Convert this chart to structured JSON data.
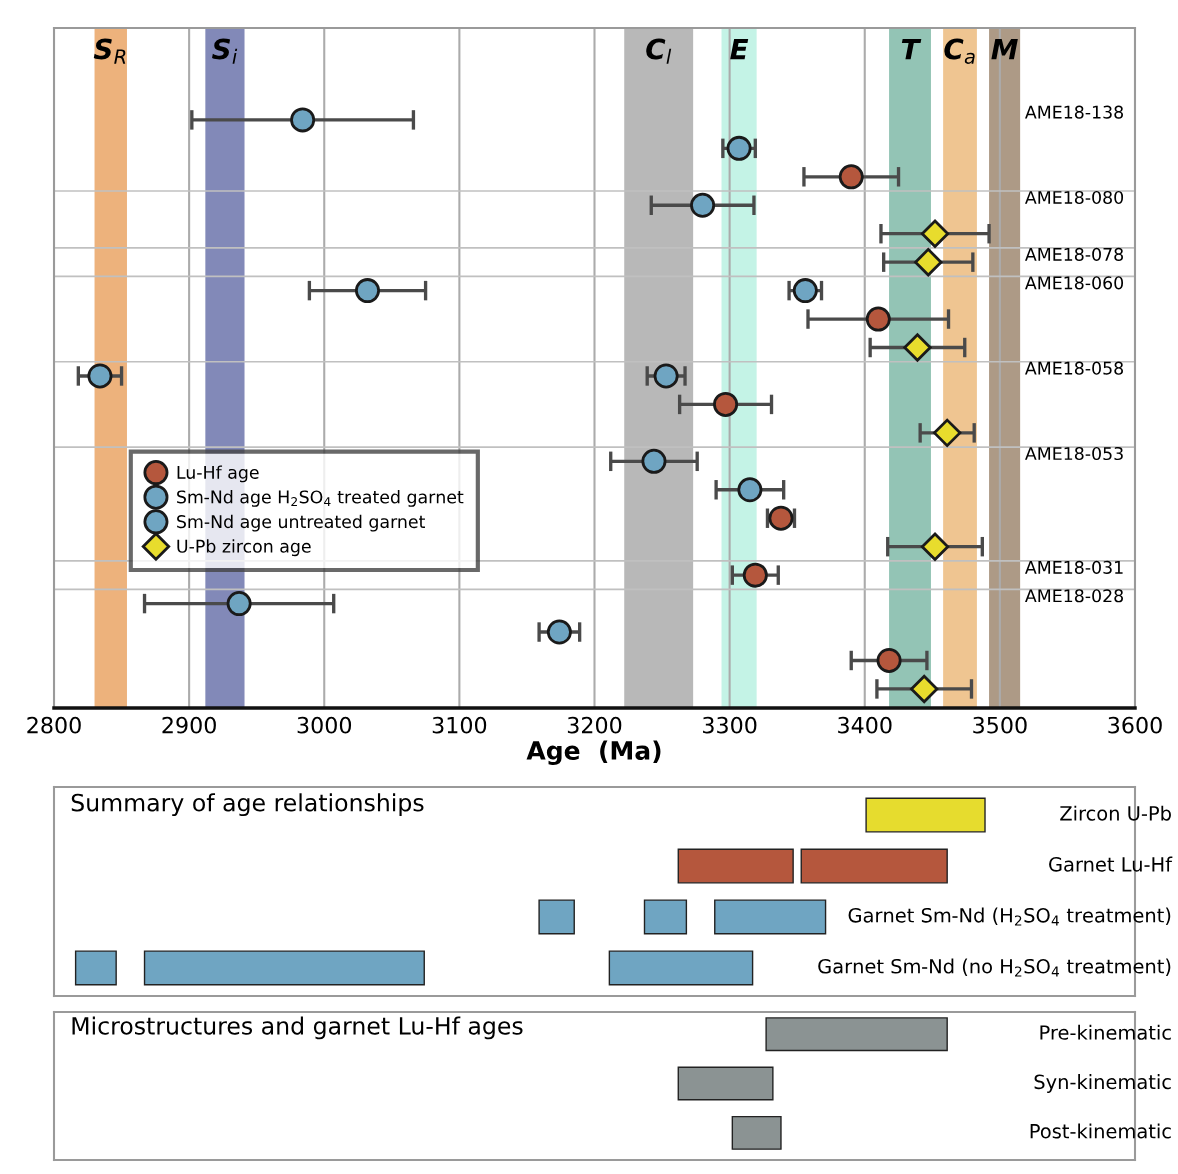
{
  "chart_data": [
    {
      "type": "scatter",
      "orientation": "horizontal",
      "xlabel": "Age  (Ma)",
      "xlim": [
        2800,
        3600
      ],
      "xticks": [
        2800,
        2900,
        3000,
        3100,
        3200,
        3300,
        3400,
        3500,
        3600
      ],
      "grid": true,
      "legend": "left",
      "categories": [
        "AME18-138",
        null,
        null,
        "AME18-080",
        null,
        "AME18-078",
        "AME18-060",
        null,
        null,
        "AME18-058",
        null,
        null,
        "AME18-053",
        null,
        null,
        null,
        "AME18-031",
        "AME18-028",
        null,
        null,
        null
      ],
      "bands": [
        {
          "axis": "x",
          "from": 2830,
          "to": 2854,
          "label": "S$_{R}$",
          "color": "#edb27c"
        },
        {
          "axis": "x",
          "from": 2912,
          "to": 2941,
          "label": "S$_{i}$",
          "color": "#8289b8"
        },
        {
          "axis": "x",
          "from": 3222,
          "to": 3273,
          "label": "C$_{l}$",
          "color": "#b8b8b8"
        },
        {
          "axis": "x",
          "from": 3294,
          "to": 3320,
          "label": "E",
          "color": "#c4f3e6"
        },
        {
          "axis": "x",
          "from": 3418,
          "to": 3449,
          "label": "T",
          "color": "#93c4b5"
        },
        {
          "axis": "x",
          "from": 3458,
          "to": 3483,
          "label": "C$_{a}$",
          "color": "#efc591"
        },
        {
          "axis": "x",
          "from": 3492,
          "to": 3515,
          "label": "M",
          "color": "#ad9a86"
        }
      ],
      "series": [
        {
          "name": "Lu-Hf age",
          "color": "#b5573d",
          "marker": "circle",
          "values": [
            null,
            null,
            3390,
            null,
            null,
            null,
            null,
            3410,
            null,
            null,
            3297,
            null,
            null,
            null,
            3338,
            null,
            3319,
            null,
            null,
            3418,
            null
          ],
          "errors": [
            null,
            null,
            35,
            null,
            null,
            null,
            null,
            52,
            null,
            null,
            34,
            null,
            null,
            null,
            10,
            null,
            17,
            null,
            null,
            28,
            null
          ]
        },
        {
          "name": "Sm-Nd age H$_{2}$SO$_{4}$ treated garnet",
          "color": "#6fa5c2",
          "marker": "circle",
          "values": [
            null,
            3307,
            null,
            null,
            null,
            null,
            3356,
            null,
            null,
            3253,
            null,
            null,
            null,
            3315,
            null,
            null,
            null,
            null,
            3174,
            null,
            null
          ],
          "errors": [
            null,
            12,
            null,
            null,
            null,
            null,
            12,
            null,
            null,
            14,
            null,
            null,
            null,
            25,
            null,
            null,
            null,
            null,
            15,
            null,
            null
          ]
        },
        {
          "name": "Sm-Nd age untreated garnet",
          "color": "#6fa5c2",
          "marker": "circle",
          "values": [
            2984,
            null,
            null,
            3280,
            null,
            null,
            3032,
            null,
            null,
            2834,
            null,
            null,
            3244,
            null,
            null,
            null,
            null,
            2937,
            null,
            null,
            null
          ],
          "errors": [
            82,
            null,
            null,
            38,
            null,
            null,
            43,
            null,
            null,
            16,
            null,
            null,
            32,
            null,
            null,
            null,
            null,
            70,
            null,
            null,
            null
          ]
        },
        {
          "name": "U-Pb zircon age",
          "color": "#e8dc2d",
          "marker": "diamond",
          "values": [
            null,
            null,
            null,
            null,
            3452,
            3447,
            null,
            null,
            3439,
            null,
            null,
            3461,
            null,
            null,
            null,
            3452,
            null,
            null,
            null,
            null,
            3444
          ],
          "errors": [
            null,
            null,
            null,
            null,
            40,
            33,
            null,
            null,
            35,
            null,
            null,
            20,
            null,
            null,
            null,
            35,
            null,
            null,
            null,
            null,
            35
          ]
        }
      ]
    },
    {
      "type": "bar",
      "orientation": "horizontal",
      "title": "Summary of age relationships",
      "xlim": [
        2800,
        3600
      ],
      "tick_labels": "y",
      "categories": [
        "Zircon U-Pb",
        "Garnet Lu-Hf",
        "Garnet Sm-Nd (H$_{2}$SO$_{4}$ treatment)",
        "Garnet Sm-Nd (no H$_{2}$SO$_{4}$ treatment)"
      ],
      "series": [
        {
          "colors": [
            "#e6dc2e",
            "#b5573d",
            "#6fa5c2",
            "#6fa5c2"
          ],
          "base": [
            null,
            null,
            3289,
            3211
          ],
          "values": [
            null,
            null,
            82,
            106
          ]
        },
        {
          "colors": [
            "#e6dc2e",
            "#b5573d",
            "#6fa5c2",
            "#6fa5c2"
          ],
          "base": [
            null,
            3353,
            3237,
            2867
          ],
          "values": [
            null,
            108,
            31,
            207
          ]
        },
        {
          "colors": [
            "#e6dc2e",
            "#b5573d",
            "#6fa5c2",
            "#6fa5c2"
          ],
          "base": [
            3401,
            3262,
            3159,
            2816
          ],
          "values": [
            88,
            85,
            26,
            30
          ]
        }
      ]
    },
    {
      "type": "bar",
      "orientation": "horizontal",
      "title": "Microstructures and garnet Lu-Hf ages",
      "xlim": [
        2800,
        3600
      ],
      "tick_labels": "y",
      "categories": [
        "Pre-kinematic",
        "Syn-kinematic",
        "Post-kinematic"
      ],
      "series": [
        {
          "color": "#8b9393",
          "base": [
            3327,
            3262,
            3302
          ],
          "values": [
            134,
            70,
            36
          ]
        }
      ]
    }
  ]
}
